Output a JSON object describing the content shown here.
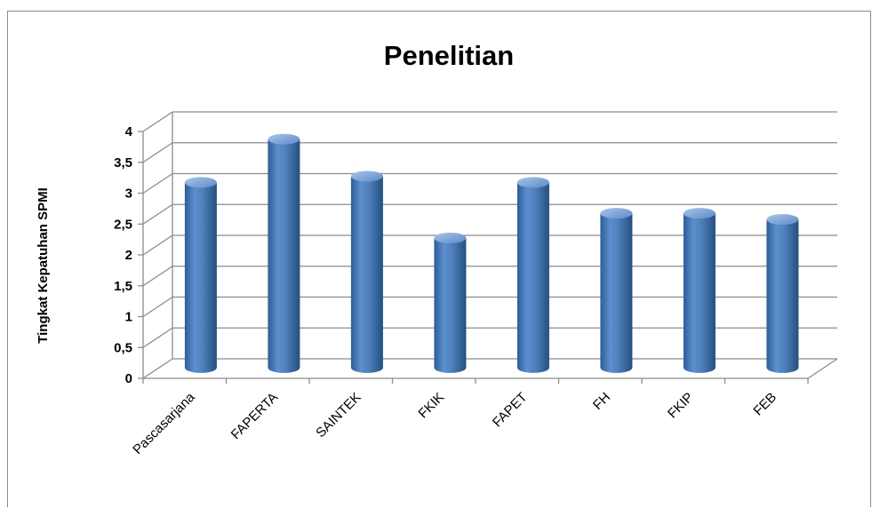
{
  "chart_data": {
    "type": "bar",
    "style": "3d-cylinder",
    "title": "Penelitian",
    "xlabel": "",
    "ylabel": "Tingkat Kepatuhan SPMI",
    "categories": [
      "Pascasarjana",
      "FAPERTA",
      "SAINTEK",
      "FKIK",
      "FAPET",
      "FH",
      "FKIP",
      "FEB"
    ],
    "series": [
      {
        "values": [
          3.0,
          3.7,
          3.1,
          2.1,
          3.0,
          2.5,
          2.5,
          2.4
        ]
      }
    ],
    "ylim": [
      0,
      4
    ],
    "yticks": [
      "0",
      "0,5",
      "1",
      "1,5",
      "2",
      "2,5",
      "3",
      "3,5",
      "4"
    ],
    "grid": true,
    "legend": "none",
    "colors": {
      "bar": "#4f81bd",
      "bar_dark": "#2f5f96",
      "bar_light": "#8db3e2",
      "grid": "#8c8c8c"
    }
  }
}
